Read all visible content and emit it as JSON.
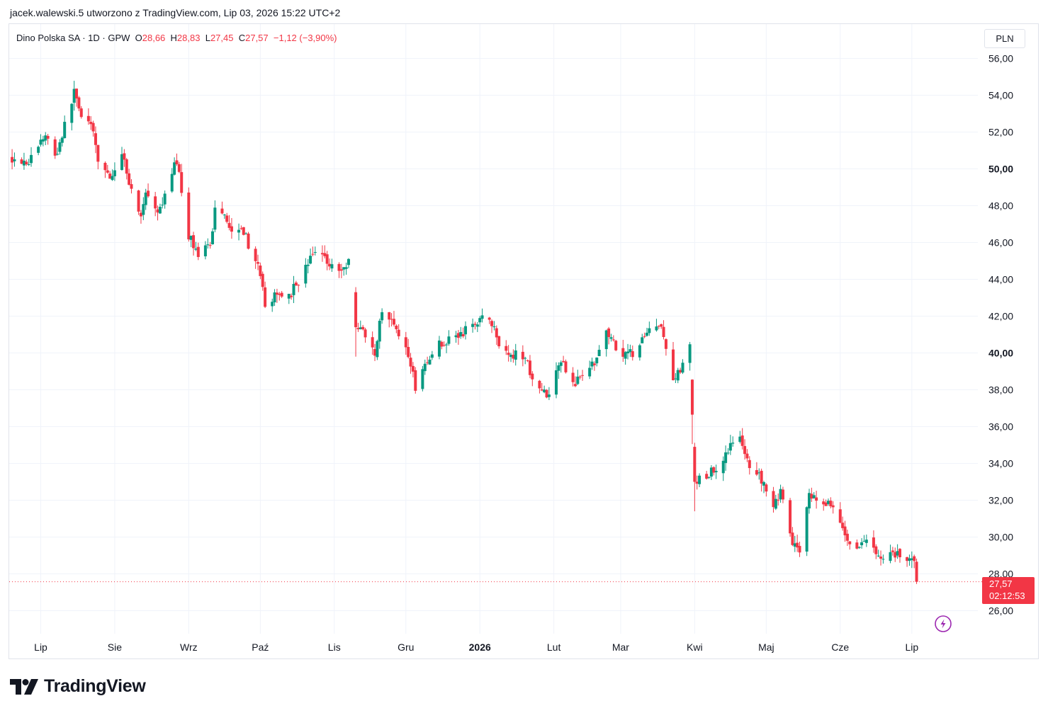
{
  "header": {
    "attribution": "jacek.walewski.5 utworzono z TradingView.com, Lip 03, 2026 15:22 UTC+2"
  },
  "legend": {
    "symbol": "Dino Polska SA · 1D · GPW",
    "open_label": "O",
    "open": "28,66",
    "high_label": "H",
    "high": "28,83",
    "low_label": "L",
    "low": "27,45",
    "close_label": "C",
    "close": "27,57",
    "change": "−1,12 (−3,90%)"
  },
  "currency": "PLN",
  "last_price": {
    "price": "27,57",
    "countdown": "02:12:53"
  },
  "brand": {
    "name": "TradingView"
  },
  "colors": {
    "up": "#089981",
    "down": "#f23645",
    "grid": "#f0f3fa",
    "accent": "#9c27b0"
  },
  "icons": {
    "brand": "tradingview-logo-icon",
    "alert": "lightning-bolt-icon"
  },
  "chart_data": {
    "type": "candlestick",
    "symbol": "Dino Polska SA",
    "interval": "1D",
    "exchange": "GPW",
    "currency": "PLN",
    "ylim": [
      24.8,
      57.5
    ],
    "y_ticks": [
      {
        "value": 26,
        "label": "26,00"
      },
      {
        "value": 28,
        "label": "28,00"
      },
      {
        "value": 30,
        "label": "30,00"
      },
      {
        "value": 32,
        "label": "32,00"
      },
      {
        "value": 34,
        "label": "34,00"
      },
      {
        "value": 36,
        "label": "36,00"
      },
      {
        "value": 38,
        "label": "38,00"
      },
      {
        "value": 40,
        "label": "40,00"
      },
      {
        "value": 42,
        "label": "42,00"
      },
      {
        "value": 44,
        "label": "44,00"
      },
      {
        "value": 46,
        "label": "46,00"
      },
      {
        "value": 48,
        "label": "48,00"
      },
      {
        "value": 50,
        "label": "50,00"
      },
      {
        "value": 52,
        "label": "52,00"
      },
      {
        "value": 54,
        "label": "54,00"
      },
      {
        "value": 56,
        "label": "56,00"
      }
    ],
    "x_ticks": [
      {
        "date": "2025-07-01",
        "label": "Lip"
      },
      {
        "date": "2025-08-01",
        "label": "Sie"
      },
      {
        "date": "2025-09-01",
        "label": "Wrz"
      },
      {
        "date": "2025-10-01",
        "label": "Paź"
      },
      {
        "date": "2025-11-01",
        "label": "Lis"
      },
      {
        "date": "2025-12-01",
        "label": "Gru"
      },
      {
        "date": "2026-01-01",
        "label": "2026"
      },
      {
        "date": "2026-02-01",
        "label": "Lut"
      },
      {
        "date": "2026-03-01",
        "label": "Mar"
      },
      {
        "date": "2026-04-01",
        "label": "Kwi"
      },
      {
        "date": "2026-05-01",
        "label": "Maj"
      },
      {
        "date": "2026-06-01",
        "label": "Cze"
      },
      {
        "date": "2026-07-01",
        "label": "Lip"
      }
    ],
    "close_path": [
      {
        "date": "2025-06-19",
        "close": 50.6
      },
      {
        "date": "2025-06-26",
        "close": 50.4
      },
      {
        "date": "2025-07-03",
        "close": 51.9
      },
      {
        "date": "2025-07-07",
        "close": 50.6
      },
      {
        "date": "2025-07-11",
        "close": 52.3
      },
      {
        "date": "2025-07-15",
        "close": 54.2
      },
      {
        "date": "2025-07-18",
        "close": 53.0
      },
      {
        "date": "2025-07-22",
        "close": 52.4
      },
      {
        "date": "2025-07-25",
        "close": 50.5
      },
      {
        "date": "2025-07-31",
        "close": 49.4
      },
      {
        "date": "2025-08-04",
        "close": 51.0
      },
      {
        "date": "2025-08-08",
        "close": 48.8
      },
      {
        "date": "2025-08-12",
        "close": 47.5
      },
      {
        "date": "2025-08-14",
        "close": 48.6
      },
      {
        "date": "2025-08-19",
        "close": 47.4
      },
      {
        "date": "2025-08-22",
        "close": 48.4
      },
      {
        "date": "2025-08-26",
        "close": 50.5
      },
      {
        "date": "2025-08-28",
        "close": 49.6
      },
      {
        "date": "2025-09-01",
        "close": 46.4
      },
      {
        "date": "2025-09-05",
        "close": 45.4
      },
      {
        "date": "2025-09-10",
        "close": 45.7
      },
      {
        "date": "2025-09-12",
        "close": 47.9
      },
      {
        "date": "2025-09-16",
        "close": 47.6
      },
      {
        "date": "2025-09-19",
        "close": 46.6
      },
      {
        "date": "2025-09-23",
        "close": 47.0
      },
      {
        "date": "2025-09-26",
        "close": 45.9
      },
      {
        "date": "2025-09-30",
        "close": 44.6
      },
      {
        "date": "2025-10-03",
        "close": 42.7
      },
      {
        "date": "2025-10-08",
        "close": 43.1
      },
      {
        "date": "2025-10-14",
        "close": 43.3
      },
      {
        "date": "2025-10-20",
        "close": 44.6
      },
      {
        "date": "2025-10-24",
        "close": 45.6
      },
      {
        "date": "2025-10-28",
        "close": 45.2
      },
      {
        "date": "2025-11-03",
        "close": 44.4
      },
      {
        "date": "2025-11-07",
        "close": 44.9
      },
      {
        "date": "2025-11-10",
        "close": 41.4
      },
      {
        "date": "2025-11-14",
        "close": 41.1
      },
      {
        "date": "2025-11-18",
        "close": 40.1
      },
      {
        "date": "2025-11-21",
        "close": 42.2
      },
      {
        "date": "2025-11-25",
        "close": 41.9
      },
      {
        "date": "2025-11-28",
        "close": 40.8
      },
      {
        "date": "2025-12-02",
        "close": 39.9
      },
      {
        "date": "2025-12-05",
        "close": 38.2
      },
      {
        "date": "2025-12-09",
        "close": 39.4
      },
      {
        "date": "2025-12-13",
        "close": 40.3
      },
      {
        "date": "2025-12-17",
        "close": 40.6
      },
      {
        "date": "2025-12-22",
        "close": 40.9
      },
      {
        "date": "2025-12-29",
        "close": 41.4
      },
      {
        "date": "2026-01-02",
        "close": 41.9
      },
      {
        "date": "2026-01-07",
        "close": 41.6
      },
      {
        "date": "2026-01-09",
        "close": 40.2
      },
      {
        "date": "2026-01-14",
        "close": 40.0
      },
      {
        "date": "2026-01-20",
        "close": 39.6
      },
      {
        "date": "2026-01-26",
        "close": 38.0
      },
      {
        "date": "2026-01-30",
        "close": 37.6
      },
      {
        "date": "2026-02-04",
        "close": 39.6
      },
      {
        "date": "2026-02-09",
        "close": 38.4
      },
      {
        "date": "2026-02-13",
        "close": 38.6
      },
      {
        "date": "2026-02-18",
        "close": 39.6
      },
      {
        "date": "2026-02-23",
        "close": 41.2
      },
      {
        "date": "2026-02-27",
        "close": 40.4
      },
      {
        "date": "2026-03-03",
        "close": 39.8
      },
      {
        "date": "2026-03-06",
        "close": 40.0
      },
      {
        "date": "2026-03-12",
        "close": 41.3
      },
      {
        "date": "2026-03-18",
        "close": 41.4
      },
      {
        "date": "2026-03-23",
        "close": 38.6
      },
      {
        "date": "2026-03-27",
        "close": 39.2
      },
      {
        "date": "2026-03-30",
        "close": 40.3
      },
      {
        "date": "2026-04-01",
        "close": 33.0
      },
      {
        "date": "2026-04-03",
        "close": 33.3
      },
      {
        "date": "2026-04-08",
        "close": 33.5
      },
      {
        "date": "2026-04-13",
        "close": 34.2
      },
      {
        "date": "2026-04-17",
        "close": 35.1
      },
      {
        "date": "2026-04-20",
        "close": 35.3
      },
      {
        "date": "2026-04-23",
        "close": 34.1
      },
      {
        "date": "2026-04-28",
        "close": 33.4
      },
      {
        "date": "2026-05-04",
        "close": 31.9
      },
      {
        "date": "2026-05-07",
        "close": 32.4
      },
      {
        "date": "2026-05-12",
        "close": 29.6
      },
      {
        "date": "2026-05-15",
        "close": 29.0
      },
      {
        "date": "2026-05-19",
        "close": 32.3
      },
      {
        "date": "2026-05-22",
        "close": 32.1
      },
      {
        "date": "2026-05-27",
        "close": 31.9
      },
      {
        "date": "2026-05-29",
        "close": 31.6
      },
      {
        "date": "2026-06-02",
        "close": 30.4
      },
      {
        "date": "2026-06-05",
        "close": 29.4
      },
      {
        "date": "2026-06-10",
        "close": 29.8
      },
      {
        "date": "2026-06-15",
        "close": 29.3
      },
      {
        "date": "2026-06-19",
        "close": 29.0
      },
      {
        "date": "2026-06-24",
        "close": 29.1
      },
      {
        "date": "2026-06-29",
        "close": 28.9
      },
      {
        "date": "2026-07-02",
        "close": 28.69
      },
      {
        "date": "2026-07-03",
        "close": 27.57
      }
    ],
    "last_bar": {
      "date": "2026-07-03",
      "open": 28.66,
      "high": 28.83,
      "low": 27.45,
      "close": 27.57
    },
    "last_price_line": 27.57,
    "grid": true
  }
}
